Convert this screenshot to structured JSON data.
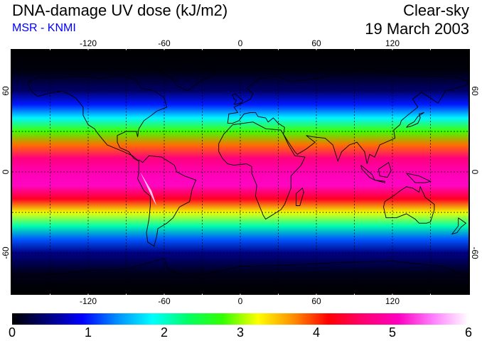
{
  "header": {
    "title": "DNA-damage UV dose (kJ/m2)",
    "source": "MSR - KNMI",
    "sky_condition": "Clear-sky",
    "date": "19 March 2003"
  },
  "colors": {
    "source_text": "#0000ff",
    "colorscale": [
      "#000000",
      "#00007a",
      "#0000ff",
      "#0090ff",
      "#00ffff",
      "#00ff66",
      "#33ff00",
      "#ffff00",
      "#ff9000",
      "#ff0000",
      "#ff0070",
      "#ff00c0",
      "#ff80ff",
      "#ffffff"
    ]
  },
  "map": {
    "projection": "plate-carree",
    "lon_range": [
      -180,
      180
    ],
    "lat_range": [
      -90,
      90
    ],
    "lon_ticks": [
      -120,
      -60,
      0,
      60,
      120
    ],
    "lon_tick_labels": [
      "-120",
      "-60",
      "0",
      "60",
      "120"
    ],
    "lat_ticks": [
      60,
      0,
      -60
    ],
    "lat_tick_labels": [
      "60",
      "0",
      "-60"
    ],
    "grid": "dashed, every 30 degrees",
    "field": {
      "quantity": "DNA-damage UV dose",
      "unit": "kJ/m2",
      "zonal_profile": [
        {
          "lat": 90,
          "value": 0.0
        },
        {
          "lat": 75,
          "value": 0.05
        },
        {
          "lat": 60,
          "value": 0.4
        },
        {
          "lat": 50,
          "value": 1.0
        },
        {
          "lat": 40,
          "value": 1.8
        },
        {
          "lat": 30,
          "value": 2.8
        },
        {
          "lat": 20,
          "value": 3.8
        },
        {
          "lat": 10,
          "value": 4.7
        },
        {
          "lat": 0,
          "value": 5.0
        },
        {
          "lat": -10,
          "value": 5.1
        },
        {
          "lat": -20,
          "value": 4.3
        },
        {
          "lat": -30,
          "value": 3.2
        },
        {
          "lat": -40,
          "value": 2.1
        },
        {
          "lat": -50,
          "value": 1.2
        },
        {
          "lat": -60,
          "value": 0.5
        },
        {
          "lat": -75,
          "value": 0.1
        },
        {
          "lat": -90,
          "value": 0.0
        }
      ],
      "maximum_region": "Andes, up to 6"
    }
  },
  "colorbar": {
    "range": [
      0,
      6
    ],
    "tick_labels": [
      "0",
      "1",
      "2",
      "3",
      "4",
      "5",
      "6"
    ]
  }
}
